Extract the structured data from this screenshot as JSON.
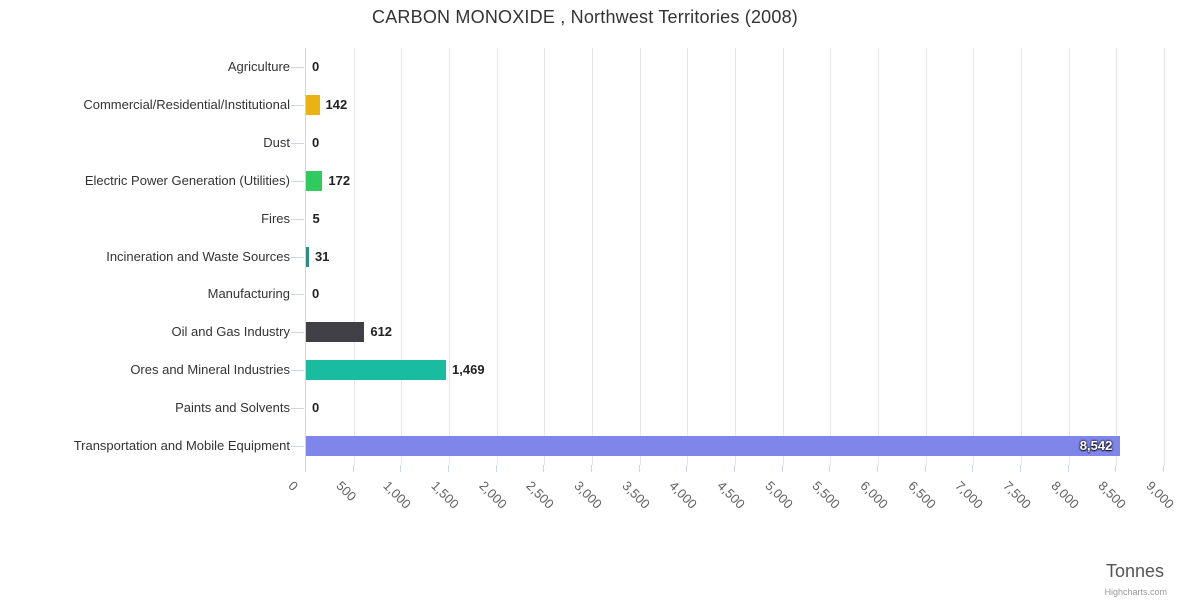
{
  "chart_data": {
    "type": "bar",
    "orientation": "horizontal",
    "title": "CARBON MONOXIDE , Northwest Territories (2008)",
    "categories": [
      "Agriculture",
      "Commercial/Residential/Institutional",
      "Dust",
      "Electric Power Generation (Utilities)",
      "Fires",
      "Incineration and Waste Sources",
      "Manufacturing",
      "Oil and Gas Industry",
      "Ores and Mineral Industries",
      "Paints and Solvents",
      "Transportation and Mobile Equipment"
    ],
    "values": [
      0,
      142,
      0,
      172,
      5,
      31,
      0,
      612,
      1469,
      0,
      8542
    ],
    "value_labels": [
      "0",
      "142",
      "0",
      "172",
      "5",
      "31",
      "0",
      "612",
      "1,469",
      "0",
      "8,542"
    ],
    "point_colors": [
      null,
      "#ebb30f",
      null,
      "#2fcb5f",
      null,
      "#2e8b8a",
      null,
      "#404046",
      "#19bc9e",
      null,
      "#8085e9"
    ],
    "label_inside": [
      false,
      false,
      false,
      false,
      false,
      false,
      false,
      false,
      false,
      false,
      true
    ],
    "xlabel": "Tonnes",
    "ylabel": "",
    "xlim": [
      0,
      9000
    ],
    "tick_interval": 500,
    "x_ticks": [
      "0",
      "500",
      "1,000",
      "1,500",
      "2,000",
      "2,500",
      "3,000",
      "3,500",
      "4,000",
      "4,500",
      "5,000",
      "5,500",
      "6,000",
      "6,500",
      "7,000",
      "7,500",
      "8,000",
      "8,500",
      "9,000"
    ],
    "grid": true,
    "legend": "none"
  },
  "credit": "Highcharts.com",
  "colors": {
    "gridline": "#e6e6e6",
    "axis_line": "#ccd6eb",
    "tick": "#ccd6eb",
    "title_text": "#333333",
    "category_label": "#333333",
    "tick_label": "#606060",
    "value_label": "#222222",
    "inside_label": "#ffffff",
    "axis_title": "#555555",
    "credit": "#999999"
  }
}
